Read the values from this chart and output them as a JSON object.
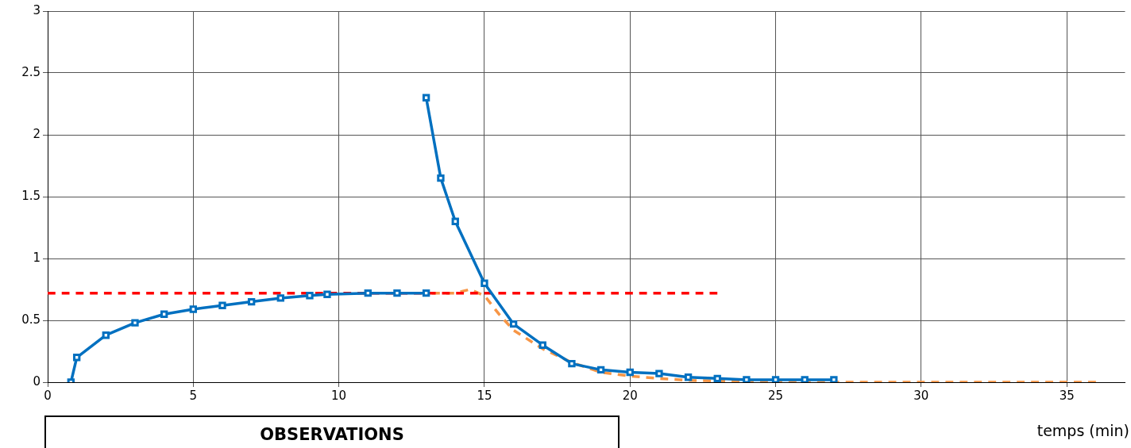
{
  "chart_data": {
    "type": "line",
    "xlabel": "temps (min)",
    "annotations": [
      "OBSERVATIONS"
    ],
    "xlim": [
      0,
      37
    ],
    "xticks": [
      0,
      5,
      10,
      15,
      20,
      25,
      30,
      35
    ],
    "ylim": [
      0,
      3
    ],
    "yticks": [
      0,
      0.5,
      1,
      1.5,
      2,
      2.5,
      3
    ],
    "grid": true,
    "legend": false,
    "series": [
      {
        "color": "#0070c0",
        "marker": "square",
        "line_style": "solid",
        "x": [
          0.8,
          1,
          2,
          3,
          4,
          5,
          6,
          7,
          8,
          9,
          9.6,
          11,
          12,
          13
        ],
        "values": [
          0,
          0.2,
          0.38,
          0.48,
          0.55,
          0.59,
          0.62,
          0.65,
          0.68,
          0.7,
          0.71,
          0.72,
          0.72,
          0.72
        ]
      },
      {
        "color": "#0070c0",
        "marker": "square",
        "line_style": "solid",
        "x": [
          13,
          13.5,
          14,
          15,
          16,
          17,
          18,
          19,
          20,
          21,
          22,
          23,
          24,
          25,
          26,
          27
        ],
        "values": [
          2.3,
          1.65,
          1.3,
          0.8,
          0.47,
          0.3,
          0.15,
          0.1,
          0.08,
          0.07,
          0.04,
          0.03,
          0.02,
          0.02,
          0.02,
          0.02
        ]
      },
      {
        "color": "#ff0000",
        "marker": "none",
        "line_style": "dashed",
        "x": [
          0,
          23
        ],
        "values": [
          0.72,
          0.72
        ]
      },
      {
        "color": "#f79646",
        "marker": "none",
        "line_style": "dashed",
        "x": [
          13.2,
          14,
          14.5,
          15,
          15.5,
          16,
          17,
          18,
          19,
          20,
          21,
          22,
          24,
          26,
          30,
          36
        ],
        "values": [
          0.72,
          0.72,
          0.75,
          0.7,
          0.55,
          0.42,
          0.27,
          0.16,
          0.08,
          0.05,
          0.03,
          0.015,
          0.005,
          0,
          0,
          0
        ]
      }
    ]
  }
}
